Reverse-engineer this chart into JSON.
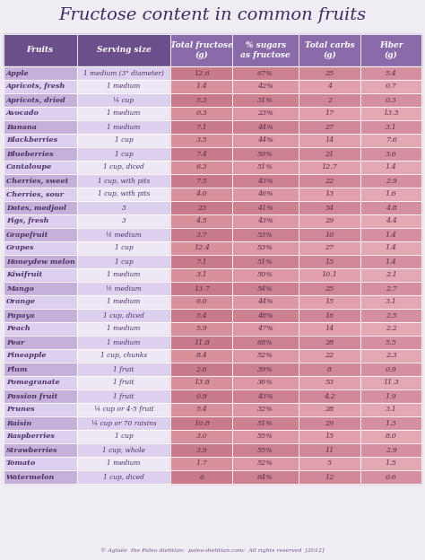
{
  "title": "Fructose content in common fruits",
  "headers": [
    "Fruits",
    "Serving size",
    "Total fructose\n(g)",
    "% sugars\nas fructose",
    "Total carbs\n(g)",
    "Fiber\n(g)"
  ],
  "rows": [
    [
      "Apple",
      "1 medium (3\" diameter)",
      "12.6",
      "67%",
      "25",
      "5.4"
    ],
    [
      "Apricots, fresh",
      "1 medium",
      "1.4",
      "42%",
      "4",
      "0.7"
    ],
    [
      "Apricots, dried",
      "¼ cup",
      "5.3",
      "31%",
      "2",
      "0.3"
    ],
    [
      "Avocado",
      "1 medium",
      "0.3",
      "23%",
      "17",
      "13.5"
    ],
    [
      "Banana",
      "1 medium",
      "7.1",
      "44%",
      "27",
      "3.1"
    ],
    [
      "Blackberries",
      "1 cup",
      "3.5",
      "44%",
      "14",
      "7.6"
    ],
    [
      "Blueberries",
      "1 cup",
      "7.4",
      "50%",
      "21",
      "3.6"
    ],
    [
      "Cantaloupe",
      "1 cup, diced",
      "6.3",
      "51%",
      "12.7",
      "1.4"
    ],
    [
      "Cherries, sweet",
      "1 cup, with pits",
      "7.5",
      "43%",
      "22",
      "2.9"
    ],
    [
      "Cherries, sour",
      "1 cup, with pits",
      "4.0",
      "46%",
      "13",
      "1.6"
    ],
    [
      "Dates, medjool",
      "3",
      "23",
      "41%",
      "54",
      "4.8"
    ],
    [
      "Figs, fresh",
      "3",
      "4.5",
      "43%",
      "29",
      "4.4"
    ],
    [
      "Grapefruit",
      "½ medium",
      "3.7",
      "53%",
      "10",
      "1.4"
    ],
    [
      "Grapes",
      "1 cup",
      "12.4",
      "53%",
      "27",
      "1.4"
    ],
    [
      "Honeydew melon",
      "1 cup",
      "7.1",
      "51%",
      "15",
      "1.4"
    ],
    [
      "Kiwifruit",
      "1 medium",
      "3.1",
      "50%",
      "10.1",
      "2.1"
    ],
    [
      "Mango",
      "½ medium",
      "13.7",
      "54%",
      "25",
      "2.7"
    ],
    [
      "Orange",
      "1 medium",
      "6.0",
      "44%",
      "15",
      "3.1"
    ],
    [
      "Papaya",
      "1 cup, diced",
      "5.4",
      "48%",
      "16",
      "2.5"
    ],
    [
      "Peach",
      "1 medium",
      "5.9",
      "47%",
      "14",
      "2.2"
    ],
    [
      "Pear",
      "1 medium",
      "11.8",
      "68%",
      "28",
      "5.5"
    ],
    [
      "Pineapple",
      "1 cup, chunks",
      "8.4",
      "52%",
      "22",
      "2.3"
    ],
    [
      "Plum",
      "1 fruit",
      "2.6",
      "39%",
      "8",
      "0.9"
    ],
    [
      "Pomegranate",
      "1 fruit",
      "13.8",
      "36%",
      "53",
      "11.3"
    ],
    [
      "Passion fruit",
      "1 fruit",
      "0.9",
      "43%",
      "4.2",
      "1.9"
    ],
    [
      "Prunes",
      "¼ cup or 4-5 fruit",
      "5.4",
      "32%",
      "28",
      "3.1"
    ],
    [
      "Raisin",
      "¼ cup or 70 raisins",
      "10.8",
      "51%",
      "29",
      "1.3"
    ],
    [
      "Raspberries",
      "1 cup",
      "3.0",
      "55%",
      "15",
      "8.0"
    ],
    [
      "Strawberries",
      "1 cup, whole",
      "3.9",
      "55%",
      "11",
      "2.9"
    ],
    [
      "Tomato",
      "1 medium",
      "1.7",
      "52%",
      "5",
      "1.5"
    ],
    [
      "Watermelon",
      "1 cup, diced",
      "6",
      "64%",
      "12",
      "0.6"
    ]
  ],
  "bg_color": "#f0ecf4",
  "title_color": "#3d2b5e",
  "header_left_bg": "#6b4f8a",
  "header_right_bg": "#8b6aaa",
  "header_text_color": "#ffffff",
  "col0_dark": "#c4b0d8",
  "col0_light": "#ddd0ee",
  "col1_dark": "#ddd0ee",
  "col1_light": "#ede8f4",
  "data_dark_cols": [
    "#c87a8a",
    "#cc8090",
    "#d08898",
    "#d490a0"
  ],
  "data_light_cols": [
    "#d8909a",
    "#dc98a4",
    "#e0a0ac",
    "#e4a8b4"
  ],
  "text_col01_color": "#4a3068",
  "text_data_color": "#5a2a4a",
  "footer": "© Aglaée  the Paleo dietitian:  paleo-dietitian.com;  All rights reserved  [2012]",
  "footer_color": "#6b4f8a",
  "title_fontsize": 14,
  "header_fontsize": 6.5,
  "cell_fontsize": 5.8,
  "footer_fontsize": 4.5
}
